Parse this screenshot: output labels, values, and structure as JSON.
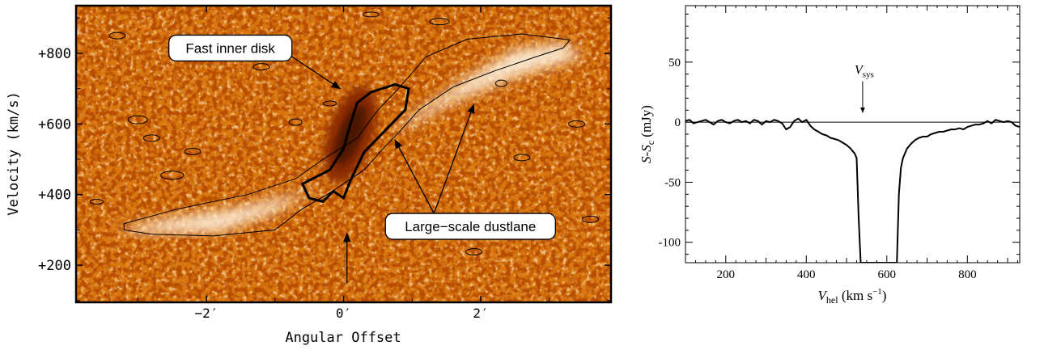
{
  "chart_data": [
    {
      "type": "heatmap",
      "xlabel": "Angular Offset",
      "ylabel": "Velocity (km/s)",
      "xlim": [
        -3.9,
        3.9
      ],
      "ylim": [
        95,
        935
      ],
      "x_ticks": [
        {
          "value": -2,
          "label": "−2′"
        },
        {
          "value": 0,
          "label": "0′"
        },
        {
          "value": 2,
          "label": "2′"
        }
      ],
      "y_ticks": [
        {
          "value": 800,
          "label": "+800"
        },
        {
          "value": 600,
          "label": "+600"
        },
        {
          "value": 400,
          "label": "+400"
        },
        {
          "value": 200,
          "label": "+200"
        }
      ],
      "colormap": [
        "#8a2a00",
        "#d9780e",
        "#f2a83c",
        "#fff2de"
      ],
      "features": {
        "dark_core": {
          "x": 0.1,
          "y": 570
        },
        "light_lobe_upper": {
          "x": 2.3,
          "y": 760
        },
        "light_lobe_lower": {
          "x": -2.0,
          "y": 330
        }
      },
      "annotations": [
        {
          "label": "Fast inner disk",
          "box": {
            "x": -1.65,
            "y": 815
          },
          "targets": [
            {
              "x": -0.05,
              "y": 700
            }
          ]
        },
        {
          "label": "Large−scale dustlane",
          "box": {
            "x": 1.85,
            "y": 310
          },
          "targets": [
            {
              "x": 0.75,
              "y": 555
            },
            {
              "x": 1.9,
              "y": 655
            }
          ]
        }
      ],
      "arrows": [
        {
          "x": 0.05,
          "y_from": 150,
          "y_to": 290
        }
      ]
    },
    {
      "type": "line",
      "xlabel_main": "V",
      "xlabel_sub": "hel",
      "xlabel_unit_pre": " (km s",
      "xlabel_unit_sup": "−1",
      "xlabel_unit_post": ")",
      "ylabel_main": "S-S",
      "ylabel_sub": "c",
      "ylabel_unit": " (mJy)",
      "xlim": [
        100,
        930
      ],
      "ylim": [
        -117,
        97
      ],
      "x_ticks": [
        200,
        400,
        600,
        800
      ],
      "y_ticks": [
        {
          "value": 50,
          "label": "50"
        },
        {
          "value": 0,
          "label": "0"
        },
        {
          "value": -50,
          "label": "-50"
        },
        {
          "value": -100,
          "label": "-100"
        }
      ],
      "vsys": {
        "x": 540,
        "label_main": "V",
        "label_sub": "sys"
      },
      "series": [
        {
          "x": [
            100,
            110,
            120,
            130,
            140,
            150,
            160,
            170,
            180,
            190,
            200,
            210,
            220,
            230,
            240,
            250,
            260,
            270,
            280,
            290,
            300,
            310,
            320,
            330,
            340,
            350,
            360,
            370,
            380,
            390,
            400,
            410,
            420,
            430,
            440,
            450,
            460,
            470,
            480,
            490,
            500,
            510,
            520,
            525,
            530,
            535,
            540,
            620,
            625,
            630,
            635,
            640,
            645,
            650,
            660,
            670,
            680,
            690,
            700,
            710,
            720,
            730,
            740,
            750,
            760,
            770,
            780,
            790,
            800,
            810,
            820,
            830,
            840,
            850,
            860,
            870,
            880,
            890,
            900,
            910,
            920,
            930
          ],
          "y": [
            1,
            2,
            -1,
            0,
            1,
            2,
            0,
            -2,
            1,
            2,
            0,
            -1,
            1,
            2,
            0,
            1,
            -1,
            2,
            1,
            -2,
            1,
            0,
            2,
            1,
            -1,
            -6,
            -4,
            1,
            3,
            0,
            2,
            -3,
            -6,
            -8,
            -10,
            -11,
            -13,
            -14,
            -15,
            -17,
            -19,
            -22,
            -26,
            -30,
            -80,
            -117,
            -117,
            -117,
            -117,
            -60,
            -38,
            -30,
            -26,
            -22,
            -18,
            -15,
            -13,
            -12,
            -12,
            -10,
            -9,
            -8,
            -8,
            -7,
            -6,
            -6,
            -5,
            -6,
            -4,
            -3,
            -2,
            -2,
            -1,
            1,
            -1,
            2,
            1,
            0,
            1,
            0,
            -3,
            -4
          ]
        }
      ]
    }
  ]
}
